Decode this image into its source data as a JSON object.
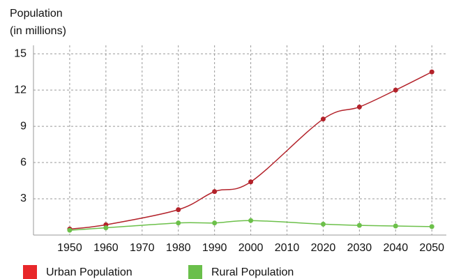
{
  "chart_data": {
    "type": "line",
    "ylabel": [
      "Population",
      "(in millions)"
    ],
    "x": [
      1950,
      1960,
      1980,
      1990,
      2000,
      2020,
      2030,
      2040,
      2050
    ],
    "series": [
      {
        "name": "Urban Population",
        "color": "#b3222a",
        "legend_color": "#e8272a",
        "values": [
          0.5,
          0.85,
          2.1,
          3.6,
          4.4,
          9.6,
          10.6,
          12.0,
          13.5
        ]
      },
      {
        "name": "Rural Population",
        "color": "#6cc04a",
        "legend_color": "#6abf4b",
        "values": [
          0.4,
          0.6,
          1.0,
          1.0,
          1.2,
          0.9,
          0.8,
          0.75,
          0.7
        ]
      }
    ],
    "xlim": [
      1940,
      2054
    ],
    "xticks": [
      1950,
      1960,
      1970,
      1980,
      1990,
      2000,
      2010,
      2020,
      2030,
      2040,
      2050
    ],
    "ylim": [
      0,
      15.7
    ],
    "yticks": [
      3,
      6,
      9,
      12,
      15
    ],
    "grid": true,
    "smooth": true,
    "legend": "bottom"
  }
}
